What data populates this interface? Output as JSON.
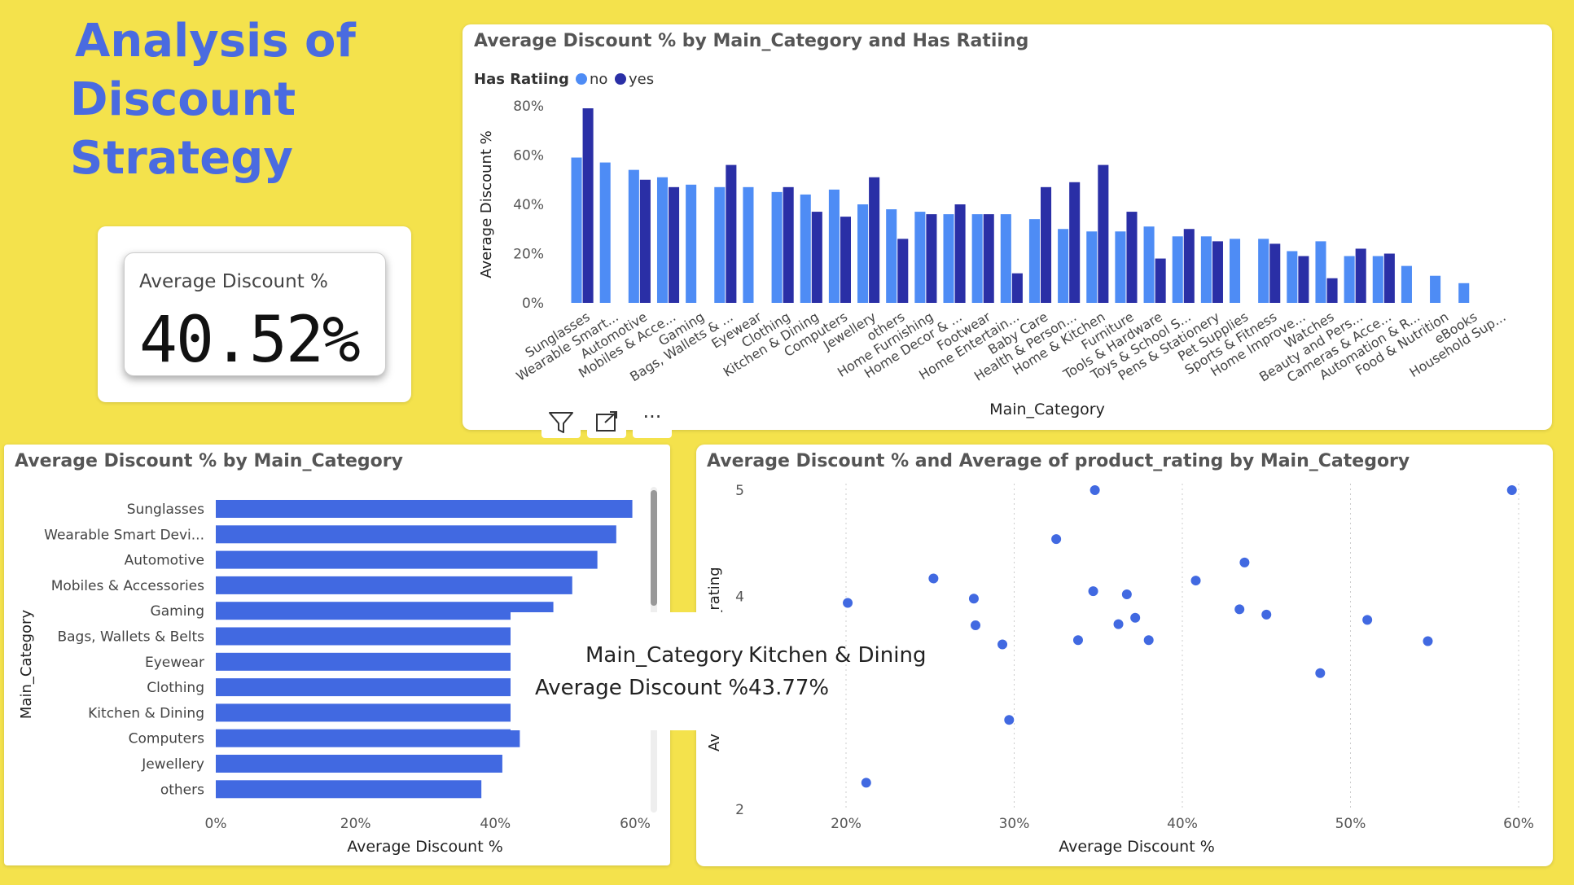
{
  "title": [
    "Analysis of",
    "Discount",
    "Strategy"
  ],
  "kpi": {
    "label": "Average Discount %",
    "value": "40.52%"
  },
  "toolbar": {
    "filter_icon": "filter-icon",
    "focus_icon": "focus-mode-icon",
    "more_icon": "more-options-icon",
    "more_label": "···"
  },
  "colors": {
    "background": "#F4E24C",
    "title": "#4A6BE0",
    "no": "#4E8CF5",
    "yes": "#2A2FA6",
    "bar": "#4169E1",
    "dot": "#4169E1"
  },
  "tooltip": {
    "label1": "Main_Category",
    "value1": "Kitchen & Dining",
    "label2": "Average Discount %",
    "value2": "43.77%"
  },
  "chart_data": [
    {
      "type": "bar",
      "title": "Average Discount % by Main_Category and Has Ratiing",
      "legend_title": "Has Ratiing",
      "legend_position": "top-left",
      "xlabel": "Main_Category",
      "ylabel": "Average Discount %",
      "ylim": [
        0,
        80
      ],
      "yticks": [
        "0%",
        "20%",
        "40%",
        "60%",
        "80%"
      ],
      "categories": [
        "Sunglasses",
        "Wearable Smart...",
        "Automotive",
        "Mobiles & Acce...",
        "Gaming",
        "Bags, Wallets & ...",
        "Eyewear",
        "Clothing",
        "Kitchen & Dining",
        "Computers",
        "Jewellery",
        "others",
        "Home Furnishing",
        "Home Decor & ...",
        "Footwear",
        "Home Entertain...",
        "Baby Care",
        "Health & Person...",
        "Home & Kitchen",
        "Furniture",
        "Tools & Hardware",
        "Toys & School S...",
        "Pens & Stationery",
        "Pet Supplies",
        "Sports & Fitness",
        "Home Improve...",
        "Watches",
        "Beauty and Pers...",
        "Cameras & Acce...",
        "Automation & R...",
        "Food & Nutrition",
        "eBooks",
        "Household Sup..."
      ],
      "series": [
        {
          "name": "no",
          "values": [
            59,
            57,
            54,
            51,
            48,
            47,
            47,
            45,
            44,
            46,
            40,
            38,
            37,
            36,
            36,
            36,
            34,
            30,
            29,
            29,
            31,
            27,
            27,
            26,
            26,
            21,
            25,
            19,
            19,
            15,
            11,
            8,
            null
          ]
        },
        {
          "name": "yes",
          "values": [
            79,
            null,
            50,
            47,
            null,
            56,
            null,
            47,
            37,
            35,
            51,
            26,
            36,
            40,
            36,
            12,
            47,
            49,
            56,
            37,
            18,
            30,
            25,
            null,
            24,
            19,
            10,
            22,
            20,
            null,
            null,
            null,
            null
          ]
        }
      ]
    },
    {
      "type": "bar",
      "orientation": "horizontal",
      "title": "Average Discount % by Main_Category",
      "xlabel": "Average Discount %",
      "ylabel": "Main_Category",
      "xlim": [
        0,
        60
      ],
      "xticks": [
        "0%",
        "20%",
        "40%",
        "60%"
      ],
      "categories": [
        "Sunglasses",
        "Wearable Smart Devi...",
        "Automotive",
        "Mobiles & Accessories",
        "Gaming",
        "Bags, Wallets & Belts",
        "Eyewear",
        "Clothing",
        "Kitchen & Dining",
        "Computers",
        "Jewellery",
        "others"
      ],
      "values": [
        59.6,
        57.3,
        54.6,
        51.0,
        48.3,
        47.5,
        47.3,
        45.6,
        43.8,
        43.5,
        41.0,
        38.0
      ]
    },
    {
      "type": "scatter",
      "title": "Average Discount % and Average of product_rating by Main_Category",
      "xlabel": "Average Discount %",
      "ylabel": "Average of product_rating",
      "ylabel_visible": "ct_rating",
      "ylabel_visible_bottom": "Av",
      "xlim": [
        20,
        60
      ],
      "ylim": [
        2,
        5
      ],
      "xticks": [
        "20%",
        "30%",
        "40%",
        "50%",
        "60%"
      ],
      "yticks": [
        "2",
        "4",
        "5"
      ],
      "points": [
        {
          "x": 20.1,
          "y": 3.94
        },
        {
          "x": 21.2,
          "y": 2.25
        },
        {
          "x": 25.2,
          "y": 4.17
        },
        {
          "x": 27.6,
          "y": 3.98
        },
        {
          "x": 27.7,
          "y": 3.73
        },
        {
          "x": 29.3,
          "y": 3.55
        },
        {
          "x": 29.7,
          "y": 2.84
        },
        {
          "x": 32.5,
          "y": 4.54
        },
        {
          "x": 33.8,
          "y": 3.59
        },
        {
          "x": 34.7,
          "y": 4.05
        },
        {
          "x": 34.8,
          "y": 5.0
        },
        {
          "x": 36.2,
          "y": 3.74
        },
        {
          "x": 36.7,
          "y": 4.02
        },
        {
          "x": 37.2,
          "y": 3.8
        },
        {
          "x": 38.0,
          "y": 3.59
        },
        {
          "x": 40.8,
          "y": 4.15
        },
        {
          "x": 43.4,
          "y": 3.88
        },
        {
          "x": 43.7,
          "y": 4.32
        },
        {
          "x": 45.0,
          "y": 3.83
        },
        {
          "x": 48.2,
          "y": 3.28
        },
        {
          "x": 51.0,
          "y": 3.78
        },
        {
          "x": 54.6,
          "y": 3.58
        },
        {
          "x": 59.6,
          "y": 5.0
        }
      ]
    }
  ]
}
